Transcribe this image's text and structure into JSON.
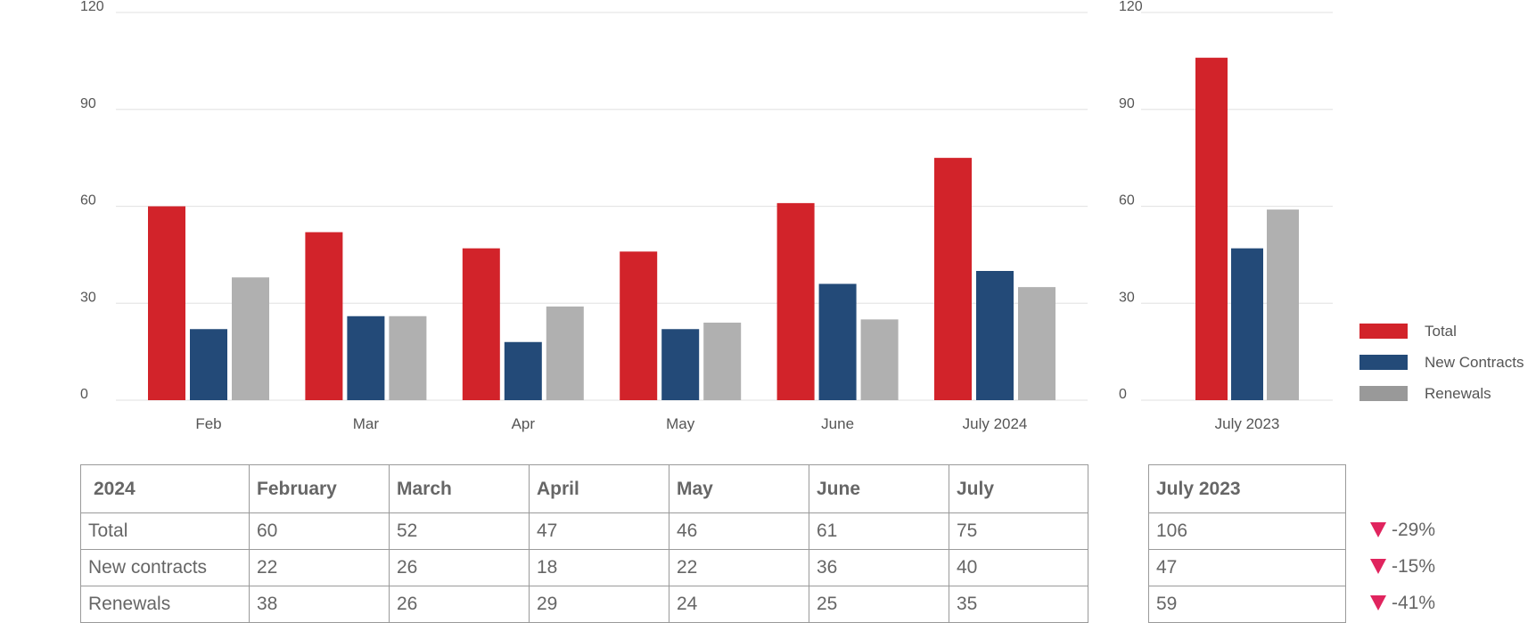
{
  "colors": {
    "total": "#d2232a",
    "new_contracts": "#234a78",
    "renewals": "#b0b0b0",
    "renewals_legend": "#999999",
    "down": "#e0245e",
    "grid": "#e6e6e6"
  },
  "chart_data": [
    {
      "type": "bar",
      "categories": [
        "Feb",
        "Mar",
        "Apr",
        "May",
        "June",
        "July 2024"
      ],
      "series": [
        {
          "name": "Total",
          "values": [
            60,
            52,
            47,
            46,
            61,
            75
          ]
        },
        {
          "name": "New Contracts",
          "values": [
            22,
            26,
            18,
            22,
            36,
            40
          ]
        },
        {
          "name": "Renewals",
          "values": [
            38,
            26,
            29,
            24,
            25,
            35
          ]
        }
      ],
      "yticks": [
        0,
        30,
        60,
        90,
        120
      ],
      "ylim": [
        0,
        120
      ],
      "grid": true
    },
    {
      "type": "bar",
      "categories": [
        "July 2023"
      ],
      "series": [
        {
          "name": "Total",
          "values": [
            106
          ]
        },
        {
          "name": "New Contracts",
          "values": [
            47
          ]
        },
        {
          "name": "Renewals",
          "values": [
            59
          ]
        }
      ],
      "yticks": [
        0,
        30,
        60,
        90,
        120
      ],
      "ylim": [
        0,
        120
      ],
      "grid": true,
      "legend": {
        "position": "right",
        "entries": [
          "Total",
          "New Contracts",
          "Renewals"
        ]
      }
    }
  ],
  "table_2024": {
    "header": [
      "2024",
      "February",
      "March",
      "April",
      "May",
      "June",
      "July"
    ],
    "rows": [
      [
        "Total",
        "60",
        "52",
        "47",
        "46",
        "61",
        "75"
      ],
      [
        "New contracts",
        "22",
        "26",
        "18",
        "22",
        "36",
        "40"
      ],
      [
        "Renewals",
        "38",
        "26",
        "29",
        "24",
        "25",
        "35"
      ]
    ]
  },
  "table_2023": {
    "header": "July 2023",
    "rows": [
      "106",
      "47",
      "59"
    ]
  },
  "changes": [
    "-29%",
    "-15%",
    "-41%"
  ]
}
